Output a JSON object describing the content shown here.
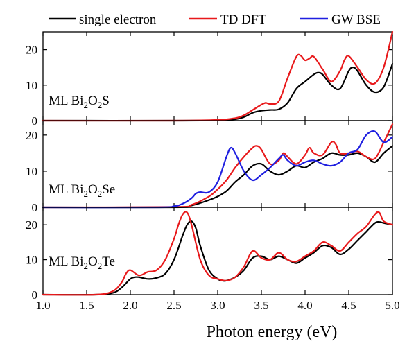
{
  "chart_data": {
    "type": "line",
    "xlabel": "Photon energy (eV)",
    "xlim": [
      1.0,
      5.0
    ],
    "xticks": [
      "1.0",
      "1.5",
      "2.0",
      "2.5",
      "3.0",
      "3.5",
      "4.0",
      "4.5",
      "5.0"
    ],
    "legend": {
      "placement": "top",
      "entries": [
        {
          "name": "single electron",
          "color": "#000000"
        },
        {
          "name": "TD DFT",
          "color": "#e8191b"
        },
        {
          "name": "GW BSE",
          "color": "#1f1fe0"
        }
      ]
    },
    "panels": [
      {
        "label_main": "ML Bi",
        "sub1": "2",
        "mid": "O",
        "sub2": "2",
        "label_end": "S",
        "ylim": [
          0,
          25
        ],
        "yticks": [
          "0",
          "10",
          "20"
        ],
        "series": [
          {
            "name": "single electron",
            "color": "#000000",
            "x": [
              1.0,
              2.5,
              3.0,
              3.2,
              3.3,
              3.4,
              3.5,
              3.6,
              3.7,
              3.8,
              3.9,
              4.0,
              4.1,
              4.15,
              4.2,
              4.3,
              4.4,
              4.5,
              4.55,
              4.6,
              4.7,
              4.8,
              4.9,
              5.0
            ],
            "y": [
              0,
              0,
              0.1,
              0.4,
              1.0,
              2.2,
              2.8,
              3.0,
              3.2,
              5.0,
              9.0,
              11.0,
              13.0,
              13.5,
              13.0,
              10.0,
              9.0,
              14.0,
              15.0,
              14.0,
              10.0,
              8.0,
              9.5,
              16.0
            ]
          },
          {
            "name": "TD DFT",
            "color": "#e8191b",
            "x": [
              1.0,
              2.5,
              3.0,
              3.2,
              3.3,
              3.4,
              3.5,
              3.55,
              3.6,
              3.7,
              3.8,
              3.9,
              3.95,
              4.0,
              4.05,
              4.1,
              4.2,
              4.3,
              4.4,
              4.45,
              4.5,
              4.6,
              4.7,
              4.8,
              4.9,
              5.0
            ],
            "y": [
              0,
              0,
              0.2,
              0.7,
              1.5,
              3.0,
              4.5,
              5.0,
              4.7,
              5.5,
              12.0,
              18.0,
              18.3,
              17.0,
              17.5,
              18.0,
              14.5,
              11.0,
              14.0,
              17.0,
              18.2,
              15.0,
              11.5,
              10.5,
              15.0,
              25.0
            ]
          }
        ]
      },
      {
        "label_main": "ML Bi",
        "sub1": "2",
        "mid": "O",
        "sub2": "2",
        "label_end": "Se",
        "ylim": [
          0,
          24
        ],
        "yticks": [
          "0",
          "10",
          "20"
        ],
        "series": [
          {
            "name": "single electron",
            "color": "#000000",
            "x": [
              1.0,
              2.5,
              2.7,
              2.9,
              3.0,
              3.1,
              3.2,
              3.3,
              3.4,
              3.5,
              3.6,
              3.7,
              3.8,
              3.9,
              4.0,
              4.1,
              4.2,
              4.3,
              4.4,
              4.5,
              4.6,
              4.7,
              4.8,
              4.9,
              5.0
            ],
            "y": [
              0,
              0,
              0.5,
              2.0,
              3.0,
              4.5,
              7.0,
              9.0,
              11.5,
              12.0,
              10.0,
              9.0,
              10.0,
              11.5,
              11.0,
              12.5,
              13.5,
              15.0,
              14.5,
              14.5,
              15.0,
              14.0,
              12.5,
              15.0,
              17.0
            ]
          },
          {
            "name": "TD DFT",
            "color": "#e8191b",
            "x": [
              1.0,
              2.5,
              2.7,
              2.9,
              3.0,
              3.1,
              3.2,
              3.3,
              3.4,
              3.45,
              3.5,
              3.6,
              3.7,
              3.75,
              3.8,
              3.9,
              4.0,
              4.05,
              4.1,
              4.2,
              4.3,
              4.35,
              4.4,
              4.5,
              4.6,
              4.7,
              4.8,
              4.9,
              5.0
            ],
            "y": [
              0,
              0.1,
              0.7,
              3.0,
              5.0,
              7.5,
              11.0,
              14.0,
              16.5,
              17.0,
              16.0,
              12.0,
              13.0,
              15.0,
              14.0,
              12.0,
              14.5,
              16.5,
              15.0,
              14.5,
              18.0,
              17.5,
              15.0,
              15.0,
              15.5,
              14.0,
              13.5,
              18.0,
              23.0
            ]
          },
          {
            "name": "GW BSE",
            "color": "#1f1fe0",
            "x": [
              1.0,
              2.3,
              2.5,
              2.6,
              2.7,
              2.75,
              2.8,
              2.9,
              3.0,
              3.1,
              3.15,
              3.2,
              3.3,
              3.4,
              3.5,
              3.6,
              3.7,
              3.75,
              3.8,
              3.9,
              4.0,
              4.1,
              4.2,
              4.3,
              4.4,
              4.5,
              4.6,
              4.7,
              4.8,
              4.9,
              5.0
            ],
            "y": [
              0,
              0,
              0.3,
              1.0,
              2.5,
              3.8,
              4.2,
              4.2,
              7.0,
              14.0,
              16.5,
              15.0,
              10.0,
              7.5,
              9.0,
              11.0,
              13.5,
              14.5,
              13.0,
              11.5,
              12.5,
              13.0,
              12.0,
              11.5,
              12.5,
              15.0,
              16.0,
              20.0,
              21.0,
              18.0,
              19.5
            ]
          }
        ]
      },
      {
        "label_main": "ML Bi",
        "sub1": "2",
        "mid": "O",
        "sub2": "2",
        "label_end": "Te",
        "ylim": [
          0,
          25
        ],
        "yticks": [
          "0",
          "10",
          "20"
        ],
        "series": [
          {
            "name": "single electron",
            "color": "#000000",
            "x": [
              1.0,
              1.6,
              1.8,
              1.9,
              2.0,
              2.05,
              2.1,
              2.2,
              2.3,
              2.4,
              2.5,
              2.6,
              2.65,
              2.7,
              2.75,
              2.8,
              2.9,
              3.0,
              3.05,
              3.1,
              3.2,
              3.3,
              3.4,
              3.5,
              3.6,
              3.7,
              3.8,
              3.9,
              4.0,
              4.1,
              4.2,
              4.3,
              4.4,
              4.5,
              4.6,
              4.7,
              4.8,
              4.85,
              4.9,
              5.0
            ],
            "y": [
              0,
              0,
              0.5,
              2.0,
              4.5,
              5.0,
              5.0,
              4.5,
              4.8,
              6.0,
              10.0,
              17.0,
              20.0,
              21.0,
              19.0,
              14.0,
              7.0,
              4.5,
              4.0,
              4.0,
              5.0,
              7.0,
              10.5,
              11.0,
              10.0,
              11.0,
              10.0,
              9.0,
              10.5,
              12.0,
              14.0,
              13.5,
              11.5,
              13.0,
              15.5,
              18.0,
              20.5,
              20.8,
              20.5,
              20.0
            ]
          },
          {
            "name": "TD DFT",
            "color": "#e8191b",
            "x": [
              1.0,
              1.6,
              1.8,
              1.9,
              1.95,
              2.0,
              2.1,
              2.2,
              2.3,
              2.4,
              2.5,
              2.55,
              2.6,
              2.65,
              2.7,
              2.8,
              2.9,
              3.0,
              3.1,
              3.2,
              3.3,
              3.4,
              3.5,
              3.6,
              3.7,
              3.8,
              3.9,
              4.0,
              4.1,
              4.2,
              4.3,
              4.4,
              4.5,
              4.6,
              4.7,
              4.8,
              4.85,
              4.9,
              5.0
            ],
            "y": [
              0,
              0,
              1.0,
              3.5,
              6.0,
              7.0,
              5.5,
              6.5,
              7.0,
              10.0,
              16.0,
              20.0,
              23.0,
              23.5,
              20.0,
              10.0,
              5.5,
              4.5,
              4.0,
              5.0,
              8.0,
              12.5,
              10.5,
              10.0,
              12.0,
              10.0,
              9.5,
              11.0,
              12.5,
              15.0,
              14.0,
              12.5,
              15.0,
              17.5,
              19.5,
              23.0,
              23.5,
              21.0,
              20.0
            ]
          }
        ]
      }
    ]
  }
}
